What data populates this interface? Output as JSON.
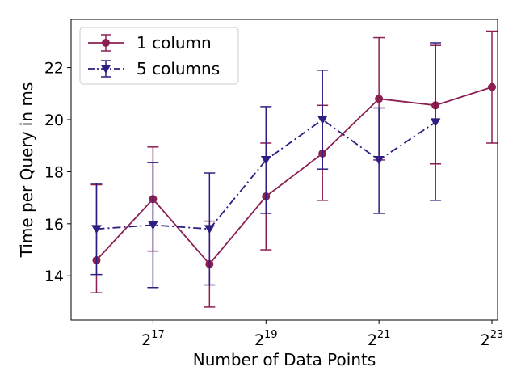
{
  "chart_data": {
    "type": "line",
    "title": "",
    "xlabel": "Number of Data Points",
    "ylabel": "Time per Query in ms",
    "x_scale": "log2",
    "xlim_exp": [
      15.55,
      23.1
    ],
    "ylim": [
      12.3,
      23.85
    ],
    "x_ticks": [
      {
        "base": "2",
        "exp": "17",
        "e": 17
      },
      {
        "base": "2",
        "exp": "19",
        "e": 19
      },
      {
        "base": "2",
        "exp": "21",
        "e": 21
      },
      {
        "base": "2",
        "exp": "23",
        "e": 23
      }
    ],
    "y_ticks": [
      {
        "label": "14",
        "v": 14
      },
      {
        "label": "16",
        "v": 16
      },
      {
        "label": "18",
        "v": 18
      },
      {
        "label": "20",
        "v": 20
      },
      {
        "label": "22",
        "v": 22
      }
    ],
    "grid": false,
    "legend": {
      "position": "top-left"
    },
    "series": [
      {
        "name": "1 column",
        "color": "#8b1f52",
        "marker": "circle",
        "linestyle": "solid",
        "x_exp": [
          16,
          17,
          18,
          19,
          20,
          21,
          22,
          23
        ],
        "y": [
          14.6,
          16.95,
          14.45,
          17.05,
          18.7,
          20.8,
          20.55,
          21.25
        ],
        "err_low": [
          13.35,
          14.95,
          12.8,
          15.0,
          16.9,
          18.45,
          18.3,
          19.1
        ],
        "err_high": [
          17.5,
          18.95,
          16.1,
          19.1,
          20.55,
          23.15,
          22.85,
          23.4
        ]
      },
      {
        "name": "5 columns",
        "color": "#2e1e82",
        "marker": "triangle-down",
        "linestyle": "dashdot",
        "x_exp": [
          16,
          17,
          18,
          19,
          20,
          21,
          22
        ],
        "y": [
          15.8,
          15.95,
          15.8,
          18.45,
          20.0,
          18.45,
          19.9
        ],
        "err_low": [
          14.05,
          13.55,
          13.65,
          16.4,
          18.1,
          16.4,
          16.9
        ],
        "err_high": [
          17.55,
          18.35,
          17.95,
          20.5,
          21.9,
          20.45,
          22.95
        ]
      }
    ]
  }
}
